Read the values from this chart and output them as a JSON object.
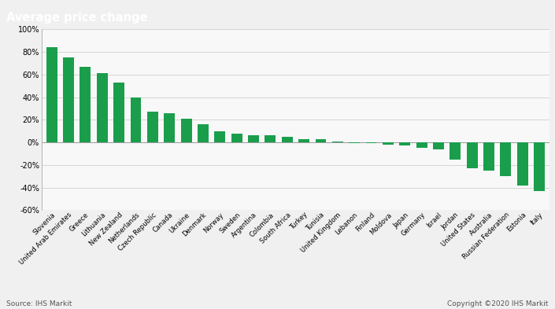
{
  "categories": [
    "Slovenia",
    "United Arab Emirates",
    "Greece",
    "Lithuania",
    "New Zealand",
    "Netherlands",
    "Czech Republic",
    "Canada",
    "Ukraine",
    "Denmark",
    "Norway",
    "Sweden",
    "Argentina",
    "Colombia",
    "South Africa",
    "Turkey",
    "Tunisia",
    "United Kingdom",
    "Lebanon",
    "Finland",
    "Moldova",
    "Japan",
    "Germany",
    "Israel",
    "Jordan",
    "United States",
    "Australia",
    "Russian Federation",
    "Estonia",
    "Italy"
  ],
  "values": [
    84,
    75,
    67,
    61,
    53,
    40,
    27,
    26,
    21,
    16,
    10,
    8,
    6,
    6,
    5,
    3,
    3,
    1,
    -1,
    -1,
    -2,
    -3,
    -5,
    -6,
    -15,
    -23,
    -25,
    -30,
    -38,
    -43
  ],
  "bar_color": "#1a9e4c",
  "title": "Average price change",
  "title_bg_color": "#888888",
  "title_text_color": "#ffffff",
  "chart_bg_color": "#f0f0f0",
  "plot_bg_color": "#f8f8f8",
  "ylim": [
    -60,
    100
  ],
  "yticks": [
    -60,
    -40,
    -20,
    0,
    20,
    40,
    60,
    80,
    100
  ],
  "grid_color": "#d0d0d0",
  "source_text": "Source: IHS Markit",
  "copyright_text": "Copyright ©2020 IHS Markit",
  "tick_label_fontsize": 6.0,
  "ytick_label_fontsize": 7.0,
  "title_fontsize": 10.5
}
